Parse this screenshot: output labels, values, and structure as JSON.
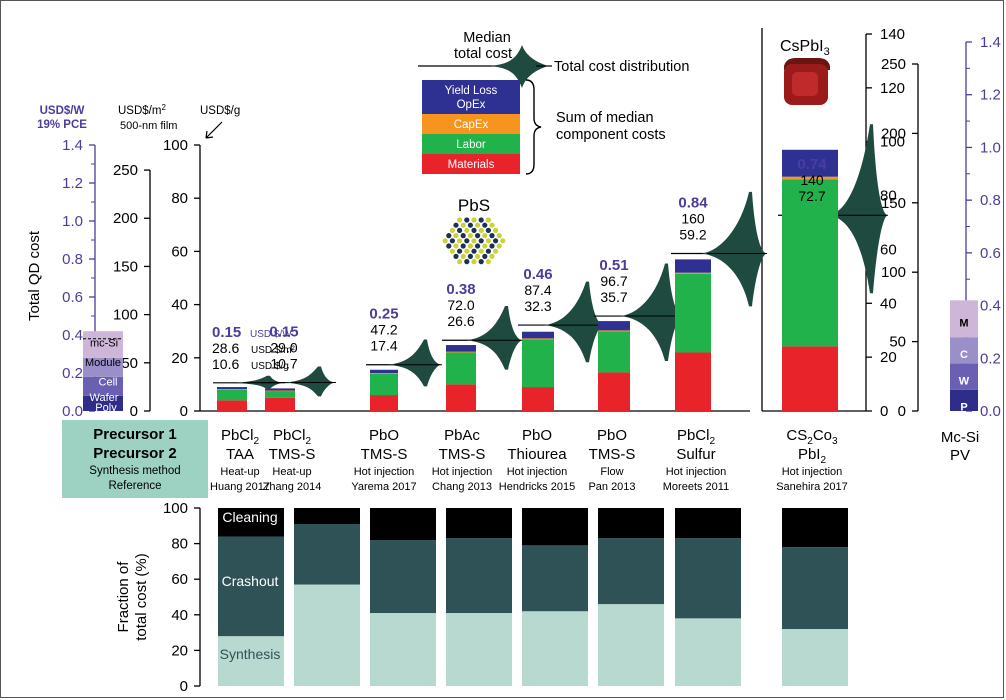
{
  "colors": {
    "materials": "#e8232a",
    "labor": "#21b24b",
    "capex": "#f7941d",
    "yield_opex": "#2e3192",
    "usd_w_axis": "#4b3d9c",
    "distribution": "#1f4a3f",
    "synthesis": "#b7d9cf",
    "crashout": "#2f5257",
    "cleaning": "#000000",
    "legend_box": "#9dd1c2",
    "mcsi_poly": "#2f2d8a",
    "mcsi_wafer": "#6a5fb3",
    "mcsi_cell": "#9b8fc9",
    "mcsi_module": "#cdb6d8"
  },
  "headers": {
    "usd_w": "USD$/W",
    "pce": "19% PCE",
    "usd_m2": "USD$/m",
    "usd_m2_sup": "2",
    "film": "500-nm film",
    "usd_g": "USD$/g",
    "y_title": "Total QD cost"
  },
  "legend": {
    "median_line1": "Median",
    "median_line2": "total cost",
    "distribution": "Total cost distribution",
    "sum_line1": "Sum of median",
    "sum_line2": "component costs",
    "yield": "Yield Loss",
    "opex": "OpEx",
    "capex": "CapEx",
    "labor": "Labor",
    "materials": "Materials"
  },
  "labels": {
    "pbs": "PbS",
    "cspbi3": "CsPbI",
    "cspbi3_sub": "3",
    "mcsi_pv_1": "Mc-Si",
    "mcsi_pv_2": "PV",
    "unit_usd_w": "USD $/W",
    "unit_usd_m2": "USD $/m²",
    "unit_usd_g": "USD $/g"
  },
  "key_box": {
    "line1": "Precursor 1",
    "line2": "Precursor 2",
    "line3": "Synthesis method",
    "line4": "Reference"
  },
  "mcsi": {
    "mc_si": "mc-Si",
    "module": "Module",
    "cell": "Cell",
    "wafer": "Wafer",
    "poly": "Poly",
    "m": "M",
    "c": "C",
    "w": "W",
    "p": "P"
  },
  "chart_data": [
    {
      "type": "bar",
      "title": "",
      "ylabel": "Total QD cost",
      "y_axes": [
        {
          "unit": "USD$/W",
          "range": [
            0,
            1.4
          ],
          "ticks": [
            "0.0",
            "0.2",
            "0.4",
            "0.6",
            "0.8",
            "1.0",
            "1.2",
            "1.4"
          ]
        },
        {
          "unit": "USD$/m2",
          "range": [
            0,
            280
          ],
          "ticks": [
            "0",
            "50",
            "100",
            "150",
            "200",
            "250"
          ]
        },
        {
          "unit": "USD$/g",
          "range": [
            0,
            100
          ],
          "ticks": [
            "0",
            "20",
            "40",
            "60",
            "80",
            "100"
          ]
        },
        {
          "unit": "USD$/g (CsPbI3)",
          "range": [
            0,
            140
          ],
          "ticks": [
            "0",
            "20",
            "40",
            "60",
            "80",
            "100",
            "120",
            "140"
          ]
        },
        {
          "unit": "USD$/m2 (CsPbI3)",
          "range": [
            0,
            280
          ],
          "ticks": [
            "0",
            "50",
            "100",
            "150",
            "200",
            "250"
          ]
        },
        {
          "unit": "USD$/W (Mc-Si)",
          "range": [
            0,
            1.4
          ],
          "ticks": [
            "0.0",
            "0.2",
            "0.4",
            "0.6",
            "0.8",
            "1.0",
            "1.2",
            "1.4"
          ]
        }
      ],
      "categories": [
        {
          "p1": "PbCl",
          "p1_sub": "2",
          "p2": "TAA",
          "p2_sub": "",
          "method": "Heat-up",
          "ref": "Huang 2017",
          "usd_w": "0.15",
          "usd_m2": "28.6",
          "usd_g": "10.6",
          "unit_labels": true,
          "materials": 4.0,
          "labor": 4.0,
          "capex": 0.2,
          "yield_opex": 0.8
        },
        {
          "p1": "PbCl",
          "p1_sub": "2",
          "p2": "TMS-S",
          "p2_sub": "",
          "method": "Heat-up",
          "ref": "Zhang 2014",
          "usd_w": "0.15",
          "usd_m2": "29.0",
          "usd_g": "10.7",
          "materials": 5.0,
          "labor": 2.5,
          "capex": 0.2,
          "yield_opex": 0.8
        },
        {
          "p1": "PbO",
          "p1_sub": "",
          "p2": "TMS-S",
          "p2_sub": "",
          "method": "Hot injection",
          "ref": "Yarema 2017",
          "usd_w": "0.25",
          "usd_m2": "47.2",
          "usd_g": "17.4",
          "materials": 6.0,
          "labor": 8.0,
          "capex": 0.2,
          "yield_opex": 1.3
        },
        {
          "p1": "PbAc",
          "p1_sub": "",
          "p2": "TMS-S",
          "p2_sub": "",
          "method": "Hot injection",
          "ref": "Chang 2013",
          "usd_w": "0.38",
          "usd_m2": "72.0",
          "usd_g": "26.6",
          "materials": 10.0,
          "labor": 12.0,
          "capex": 0.3,
          "yield_opex": 2.5
        },
        {
          "p1": "PbO",
          "p1_sub": "",
          "p2": "Thiourea",
          "p2_sub": "",
          "method": "Hot injection",
          "ref": "Hendricks 2015",
          "usd_w": "0.46",
          "usd_m2": "87.4",
          "usd_g": "32.3",
          "materials": 9.0,
          "labor": 18.0,
          "capex": 0.3,
          "yield_opex": 2.5
        },
        {
          "p1": "PbO",
          "p1_sub": "",
          "p2": "TMS-S",
          "p2_sub": "",
          "method": "Flow",
          "ref": "Pan 2013",
          "usd_w": "0.51",
          "usd_m2": "96.7",
          "usd_g": "35.7",
          "materials": 14.5,
          "labor": 15.5,
          "capex": 0.3,
          "yield_opex": 3.5
        },
        {
          "p1": "PbCl",
          "p1_sub": "2",
          "p2": "Sulfur",
          "p2_sub": "",
          "method": "Hot injection",
          "ref": "Moreets 2011",
          "usd_w": "0.84",
          "usd_m2": "160",
          "usd_g": "59.2",
          "materials": 22.0,
          "labor": 29.5,
          "capex": 0.5,
          "yield_opex": 5.0
        },
        {
          "p1": "CS",
          "p1_sub": "2",
          "p1_tail": "Co",
          "p1_tail_sub": "3",
          "p2": "PbI",
          "p2_sub": "2",
          "method": "Hot injection",
          "ref": "Sanehira 2017",
          "usd_w": "0.74",
          "usd_m2": "140",
          "usd_g": "72.7",
          "materials": 24.0,
          "labor": 62.0,
          "capex": 1.0,
          "yield_opex": 10.0
        }
      ],
      "mcsi_pv_usd_w": {
        "poly": 0.08,
        "wafer": 0.1,
        "cell": 0.1,
        "module": 0.14
      }
    },
    {
      "type": "bar",
      "title": "",
      "ylabel": "Fraction of total cost (%)",
      "ylim": [
        0,
        100
      ],
      "yticks": [
        "0",
        "20",
        "40",
        "60",
        "80",
        "100"
      ],
      "series": [
        {
          "name": "Synthesis",
          "values": [
            28,
            57,
            41,
            41,
            42,
            46,
            38,
            32
          ]
        },
        {
          "name": "Crashout",
          "values": [
            56,
            34,
            41,
            42,
            37,
            37,
            45,
            46
          ]
        },
        {
          "name": "Cleaning",
          "values": [
            16,
            9,
            18,
            17,
            21,
            17,
            17,
            22
          ]
        }
      ]
    }
  ]
}
